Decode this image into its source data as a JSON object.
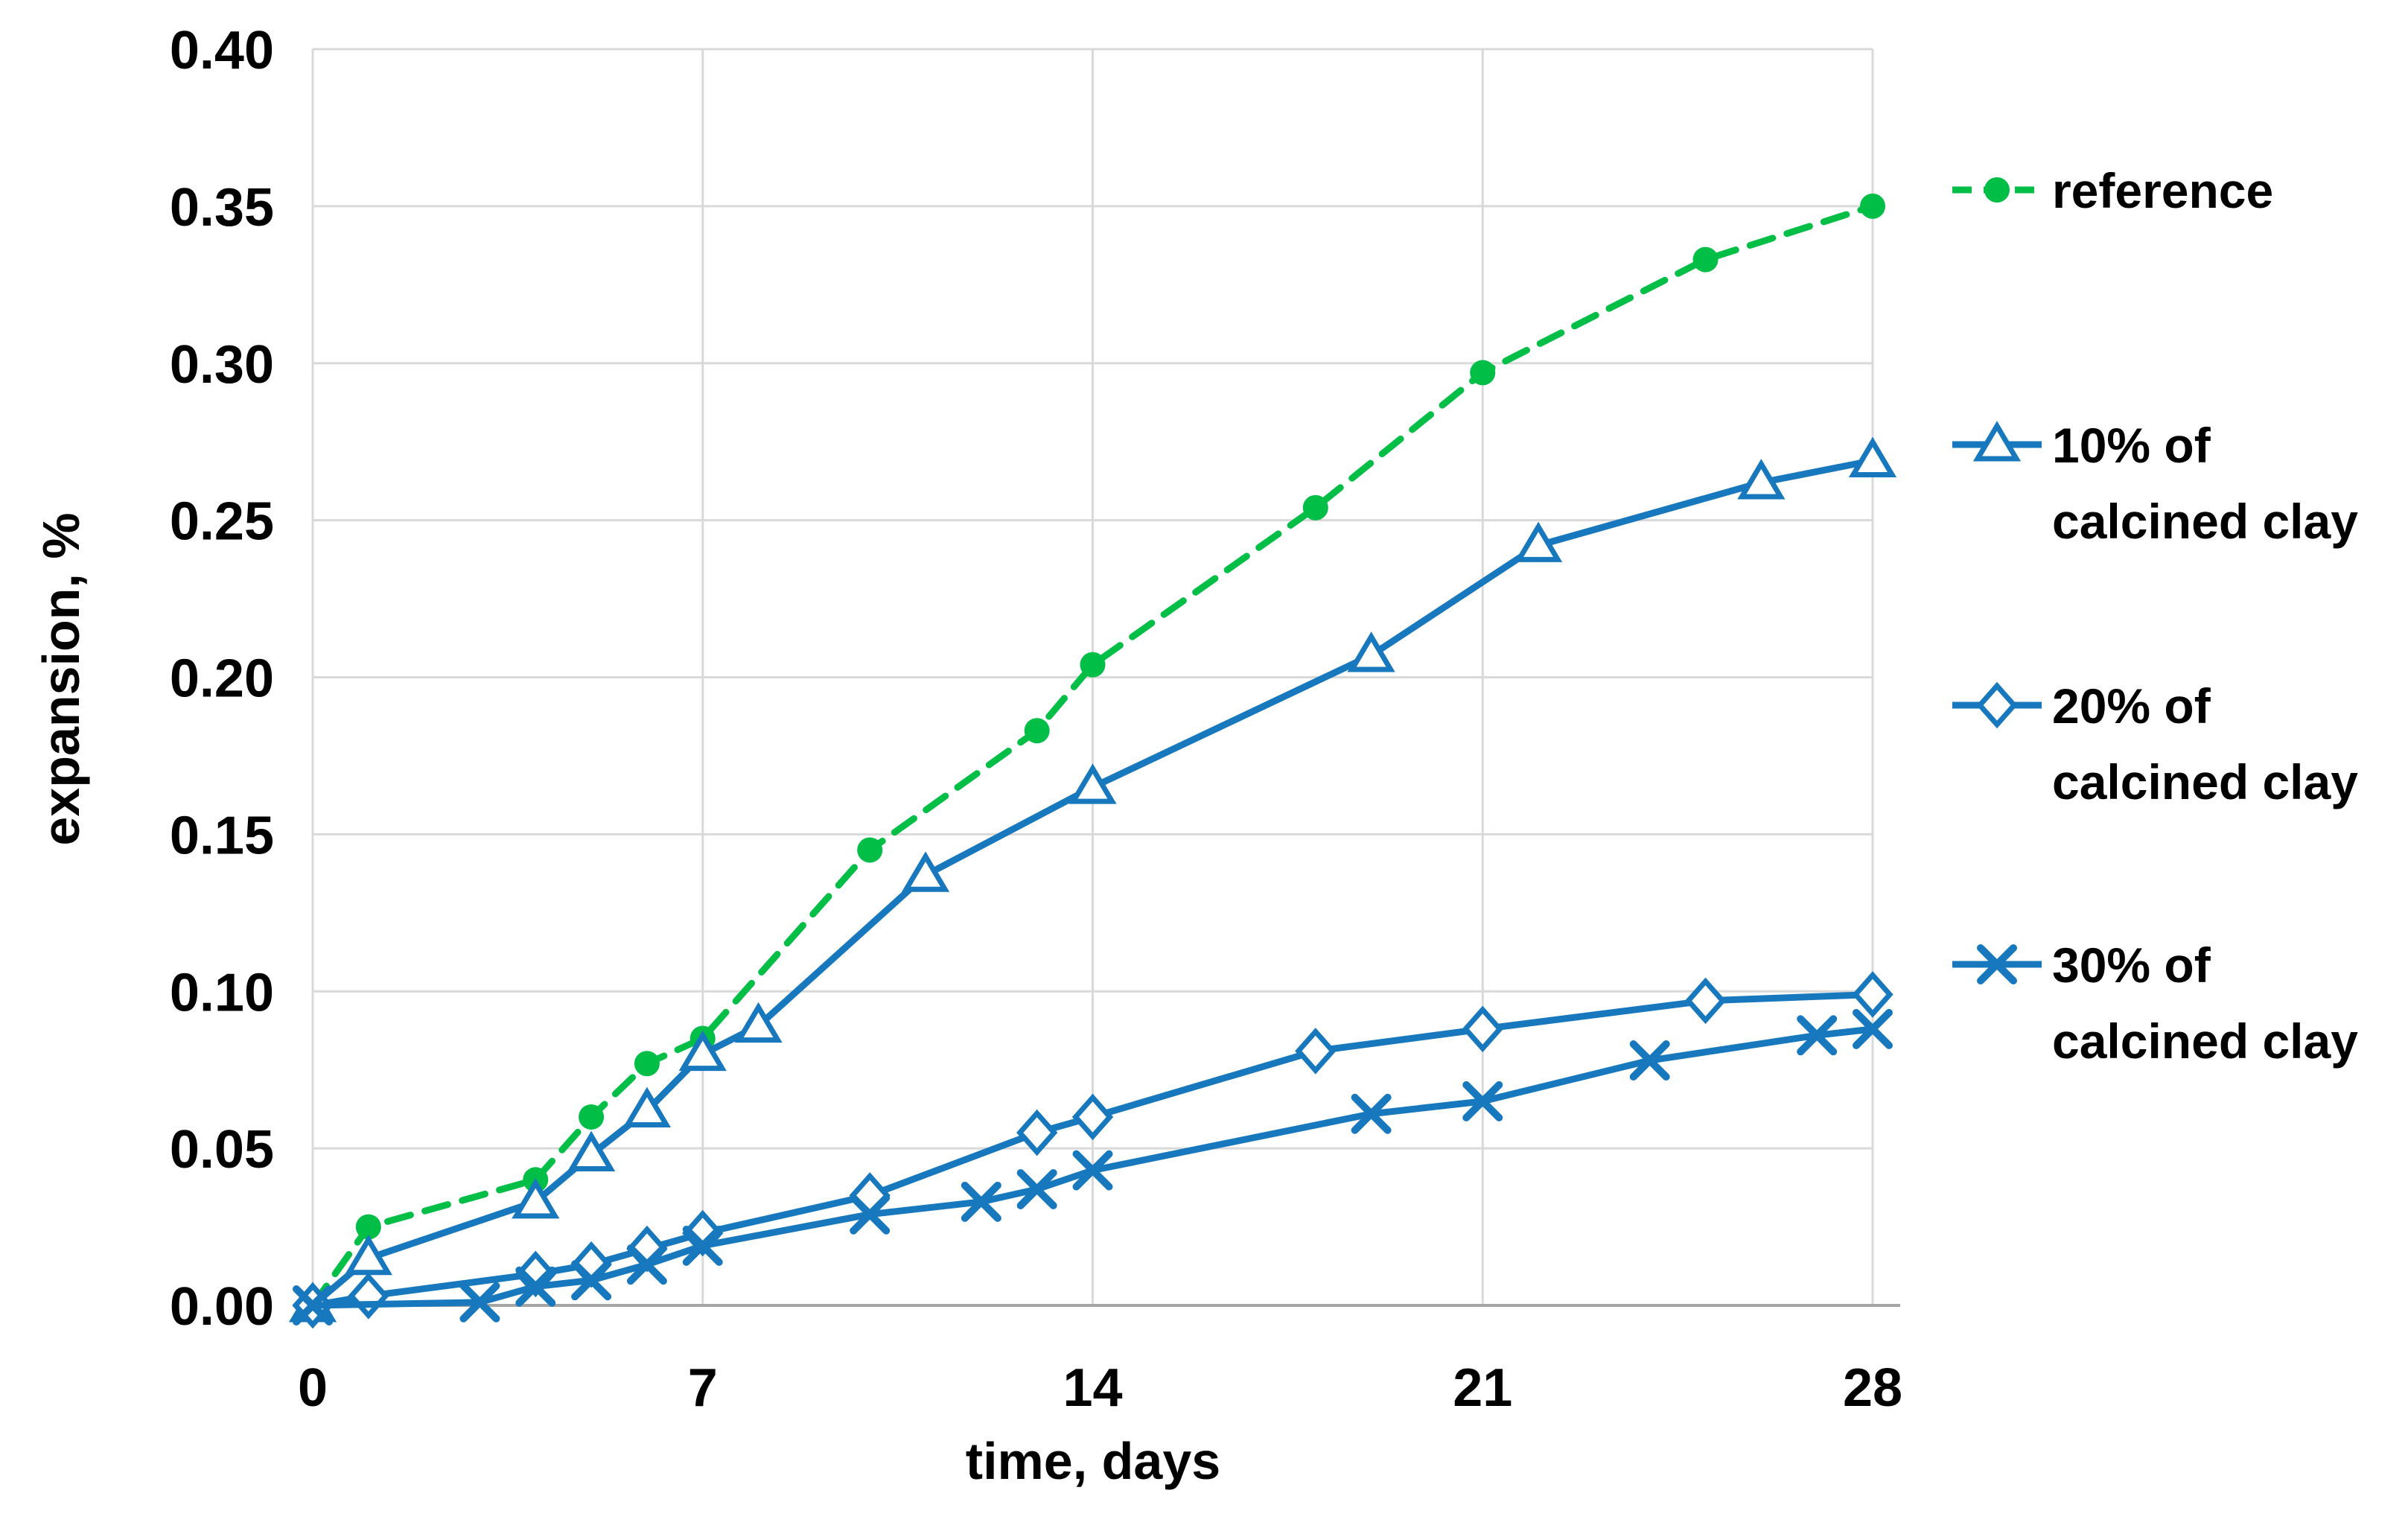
{
  "chart_data": {
    "type": "line",
    "title": "",
    "xlabel": "time, days",
    "ylabel": "expansion, %",
    "xlim": [
      0,
      28
    ],
    "ylim": [
      0.0,
      0.4
    ],
    "xticks": [
      0,
      7,
      14,
      21,
      28
    ],
    "yticks": [
      0.0,
      0.05,
      0.1,
      0.15,
      0.2,
      0.25,
      0.3,
      0.35,
      0.4
    ],
    "ytick_labels": [
      "0.00",
      "0.05",
      "0.10",
      "0.15",
      "0.20",
      "0.25",
      "0.30",
      "0.35",
      "0.40"
    ],
    "grid": true,
    "legend_position": "right",
    "colors": {
      "reference": "#00BE46",
      "calcined_clay": "#1878BE",
      "gridline": "#D9D9D9",
      "axis_line": "#A6A6A6",
      "text": "#000000"
    },
    "series": [
      {
        "name": "reference",
        "legend_lines": [
          "reference"
        ],
        "color": "#00BE46",
        "line_style": "dashed",
        "marker": "circle",
        "x": [
          0,
          1,
          4,
          5,
          6,
          7,
          10,
          13,
          14,
          18,
          21,
          25,
          28
        ],
        "y": [
          0.0,
          0.025,
          0.04,
          0.06,
          0.077,
          0.085,
          0.145,
          0.183,
          0.204,
          0.254,
          0.297,
          0.333,
          0.35
        ]
      },
      {
        "name": "10% of calcined clay",
        "legend_lines": [
          "10% of",
          "calcined clay"
        ],
        "color": "#1878BE",
        "line_style": "solid",
        "marker": "triangle",
        "x": [
          0,
          1,
          4,
          5,
          6,
          7,
          8,
          11,
          14,
          19,
          22,
          26,
          28
        ],
        "y": [
          0.0,
          0.015,
          0.033,
          0.048,
          0.062,
          0.08,
          0.089,
          0.137,
          0.165,
          0.207,
          0.242,
          0.262,
          0.269
        ]
      },
      {
        "name": "20% of calcined clay",
        "legend_lines": [
          "20% of",
          "calcined clay"
        ],
        "color": "#1878BE",
        "line_style": "solid",
        "marker": "diamond",
        "x": [
          0,
          1,
          4,
          5,
          6,
          7,
          10,
          13,
          14,
          18,
          21,
          25,
          28
        ],
        "y": [
          0.0,
          0.003,
          0.01,
          0.013,
          0.018,
          0.023,
          0.035,
          0.055,
          0.06,
          0.081,
          0.088,
          0.097,
          0.099
        ]
      },
      {
        "name": "30% of calcined clay",
        "legend_lines": [
          "30% of",
          "calcined clay"
        ],
        "color": "#1878BE",
        "line_style": "solid",
        "marker": "x",
        "x": [
          0,
          3,
          4,
          5,
          6,
          7,
          10,
          12,
          13,
          14,
          19,
          21,
          24,
          27,
          28
        ],
        "y": [
          0.0,
          0.001,
          0.006,
          0.008,
          0.013,
          0.019,
          0.029,
          0.033,
          0.037,
          0.043,
          0.061,
          0.065,
          0.078,
          0.086,
          0.088
        ]
      }
    ]
  }
}
